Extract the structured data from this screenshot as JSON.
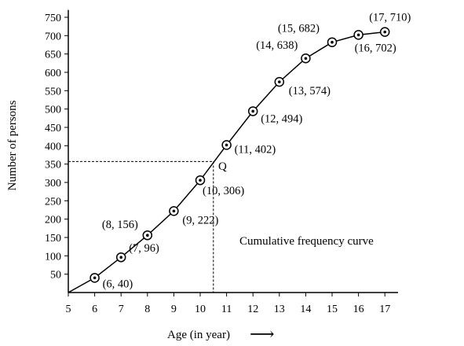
{
  "chart_data": {
    "type": "line",
    "xlabel": "Age (in year)",
    "ylabel": "Number of persons",
    "x_ticks": [
      "5",
      "6",
      "7",
      "8",
      "9",
      "10",
      "11",
      "12",
      "13",
      "14",
      "15",
      "16",
      "17"
    ],
    "y_ticks": [
      "50",
      "100",
      "150",
      "200",
      "250",
      "300",
      "350",
      "400",
      "450",
      "500",
      "550",
      "600",
      "650",
      "700",
      "750"
    ],
    "xlim": [
      5,
      17.5
    ],
    "ylim": [
      0,
      770
    ],
    "grid": false,
    "curve_start": {
      "x": 5,
      "y": 0
    },
    "series": [
      {
        "x": [
          6,
          7,
          8,
          9,
          10,
          11,
          12,
          13,
          14,
          15,
          16,
          17
        ],
        "values": [
          40,
          96,
          156,
          222,
          306,
          402,
          494,
          574,
          638,
          682,
          702,
          710
        ],
        "point_labels": [
          "(6, 40)",
          "(7, 96)",
          "(8, 156)",
          "(9, 222)",
          "(10, 306)",
          "(11, 402)",
          "(12, 494)",
          "(13, 574)",
          "(14, 638)",
          "(15, 682)",
          "(16, 702)",
          "(17, 710)"
        ]
      }
    ],
    "annotations": {
      "curve_label": "Cumulative frequency curve",
      "q_label": "Q",
      "q_point": {
        "x": 10.5,
        "y": 357
      }
    },
    "arrow": "⟶"
  }
}
